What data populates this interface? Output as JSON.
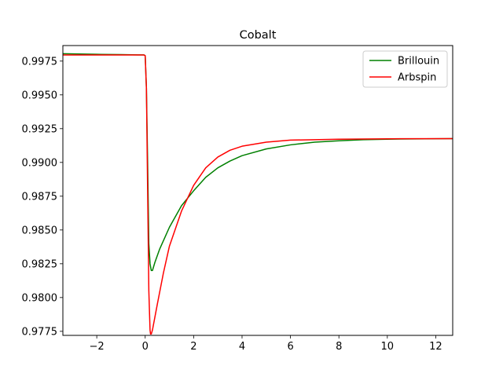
{
  "chart_data": {
    "type": "line",
    "title": "Cobalt",
    "xlabel": "",
    "ylabel": "",
    "xlim": [
      -3.4,
      12.7
    ],
    "ylim": [
      0.9772,
      0.99865
    ],
    "xticks": [
      -2,
      0,
      2,
      4,
      6,
      8,
      10,
      12
    ],
    "xtick_labels": [
      "−2",
      "0",
      "2",
      "4",
      "6",
      "8",
      "10",
      "12"
    ],
    "yticks": [
      0.9775,
      0.98,
      0.9825,
      0.985,
      0.9875,
      0.99,
      0.9925,
      0.995,
      0.9975
    ],
    "ytick_labels": [
      "0.9775",
      "0.9800",
      "0.9825",
      "0.9850",
      "0.9875",
      "0.9900",
      "0.9925",
      "0.9950",
      "0.9975"
    ],
    "grid": false,
    "legend_position": "top-right",
    "series": [
      {
        "name": "Brillouin",
        "color": "#008000",
        "points": [
          [
            -3.4,
            0.99805
          ],
          [
            -2.0,
            0.998
          ],
          [
            -1.0,
            0.99798
          ],
          [
            -0.3,
            0.99796
          ],
          [
            -0.05,
            0.99796
          ],
          [
            0.0,
            0.9979
          ],
          [
            0.05,
            0.9955
          ],
          [
            0.1,
            0.99
          ],
          [
            0.15,
            0.984
          ],
          [
            0.2,
            0.9825
          ],
          [
            0.25,
            0.982
          ],
          [
            0.3,
            0.982
          ],
          [
            0.4,
            0.9826
          ],
          [
            0.6,
            0.9836
          ],
          [
            0.8,
            0.9844
          ],
          [
            1.0,
            0.9852
          ],
          [
            1.5,
            0.9868
          ],
          [
            2.0,
            0.9879
          ],
          [
            2.5,
            0.9889
          ],
          [
            3.0,
            0.9896
          ],
          [
            3.5,
            0.9901
          ],
          [
            4.0,
            0.9905
          ],
          [
            5.0,
            0.991
          ],
          [
            6.0,
            0.9913
          ],
          [
            7.0,
            0.9915
          ],
          [
            8.0,
            0.9916
          ],
          [
            9.0,
            0.99168
          ],
          [
            10.0,
            0.99172
          ],
          [
            11.0,
            0.99174
          ],
          [
            12.7,
            0.99176
          ]
        ]
      },
      {
        "name": "Arbspin",
        "color": "#ff0000",
        "points": [
          [
            -3.4,
            0.99795
          ],
          [
            -2.0,
            0.99795
          ],
          [
            -1.0,
            0.99795
          ],
          [
            -0.05,
            0.99795
          ],
          [
            0.0,
            0.9979
          ],
          [
            0.05,
            0.9955
          ],
          [
            0.1,
            0.988
          ],
          [
            0.15,
            0.9805
          ],
          [
            0.2,
            0.9776
          ],
          [
            0.22,
            0.9773
          ],
          [
            0.25,
            0.9773
          ],
          [
            0.3,
            0.9776
          ],
          [
            0.5,
            0.9795
          ],
          [
            0.75,
            0.9818
          ],
          [
            1.0,
            0.9838
          ],
          [
            1.5,
            0.9864
          ],
          [
            2.0,
            0.9883
          ],
          [
            2.5,
            0.9896
          ],
          [
            3.0,
            0.9904
          ],
          [
            3.5,
            0.9909
          ],
          [
            4.0,
            0.9912
          ],
          [
            5.0,
            0.9915
          ],
          [
            6.0,
            0.99165
          ],
          [
            8.0,
            0.99172
          ],
          [
            10.0,
            0.99175
          ],
          [
            12.7,
            0.99176
          ]
        ]
      }
    ]
  }
}
